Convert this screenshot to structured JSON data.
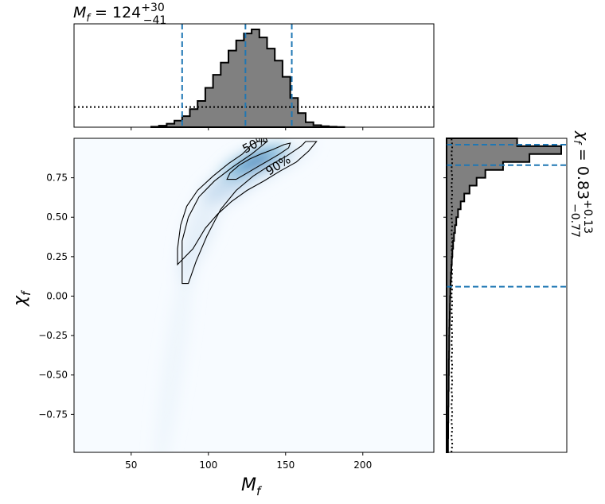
{
  "chart_data": {
    "type": "heatmap",
    "top_title": {
      "base": "M",
      "sub": "f",
      "eq": " = 124",
      "sup": "+30",
      "inf": "−41"
    },
    "right_title": {
      "base": "χ",
      "sub": "f",
      "eq": " = 0.83",
      "sup": "+0.13",
      "inf": "−0.77"
    },
    "xlabel": {
      "base": "M",
      "sub": "f"
    },
    "ylabel": {
      "base": "χ",
      "sub": "f"
    },
    "xlim": [
      13,
      246
    ],
    "ylim": [
      -0.99,
      1.0
    ],
    "xticks": [
      50,
      100,
      150,
      200
    ],
    "xtick_labels": [
      "50",
      "100",
      "150",
      "200"
    ],
    "yticks": [
      -0.75,
      -0.5,
      -0.25,
      0.0,
      0.25,
      0.5,
      0.75
    ],
    "ytick_labels": [
      "−0.75",
      "−0.50",
      "−0.25",
      "0.00",
      "0.25",
      "0.50",
      "0.75"
    ],
    "contour_labels": [
      "50%",
      "90%"
    ],
    "colormap": [
      "#f7fbff",
      "#deebf7",
      "#c6dbef",
      "#9ecae1",
      "#6baed6",
      "#3182bd",
      "#08519c"
    ],
    "hist_fill": "#808080",
    "quantile_color": "#1f77b4",
    "mass_hist": {
      "bin_edges": [
        63,
        68,
        73,
        78,
        83,
        88,
        93,
        98,
        103,
        108,
        113,
        118,
        123,
        128,
        133,
        138,
        143,
        148,
        153,
        158,
        163,
        168,
        173,
        178,
        183,
        188
      ],
      "density": [
        0.5,
        1.5,
        3.5,
        6.5,
        11,
        18,
        26,
        39,
        52,
        64,
        76,
        86,
        93,
        97,
        89,
        78,
        66,
        50,
        29,
        14,
        5,
        2,
        1,
        0.5,
        0.2
      ],
      "prior_level": 20,
      "quantiles": [
        83,
        124,
        154
      ]
    },
    "spin_hist": {
      "bin_edges": [
        -0.99,
        -0.95,
        -0.9,
        -0.85,
        -0.8,
        -0.75,
        -0.7,
        -0.65,
        -0.6,
        -0.55,
        -0.5,
        -0.45,
        -0.4,
        -0.35,
        -0.3,
        -0.25,
        -0.2,
        -0.15,
        -0.1,
        -0.05,
        0.0,
        0.05,
        0.1,
        0.15,
        0.2,
        0.25,
        0.3,
        0.35,
        0.4,
        0.45,
        0.5,
        0.55,
        0.6,
        0.65,
        0.7,
        0.75,
        0.8,
        0.85,
        0.9,
        0.95,
        1.0
      ],
      "density": [
        0.8,
        0.8,
        0.9,
        0.9,
        1.0,
        1.0,
        1.1,
        1.1,
        1.2,
        1.2,
        1.3,
        1.3,
        1.4,
        1.5,
        1.5,
        1.6,
        1.7,
        1.8,
        1.9,
        2.0,
        2.1,
        2.3,
        2.5,
        2.7,
        3.0,
        3.3,
        3.7,
        4.2,
        4.8,
        5.5,
        6.5,
        8,
        10,
        13,
        17,
        22,
        32,
        47,
        65,
        40
      ],
      "prior_level": 3.0,
      "quantiles": [
        0.06,
        0.83,
        0.96
      ]
    },
    "density_peak": {
      "x": 130,
      "y": 0.85
    },
    "contour_50": [
      [
        112,
        0.74
      ],
      [
        114,
        0.78
      ],
      [
        120,
        0.83
      ],
      [
        127,
        0.87
      ],
      [
        134,
        0.9
      ],
      [
        142,
        0.93
      ],
      [
        149,
        0.96
      ],
      [
        153,
        0.97
      ],
      [
        152,
        0.94
      ],
      [
        146,
        0.9
      ],
      [
        139,
        0.86
      ],
      [
        132,
        0.82
      ],
      [
        125,
        0.78
      ],
      [
        118,
        0.74
      ],
      [
        112,
        0.74
      ]
    ],
    "contour_90": [
      [
        83,
        0.08
      ],
      [
        87,
        0.08
      ],
      [
        92,
        0.22
      ],
      [
        99,
        0.38
      ],
      [
        108,
        0.55
      ],
      [
        118,
        0.67
      ],
      [
        129,
        0.76
      ],
      [
        140,
        0.83
      ],
      [
        151,
        0.89
      ],
      [
        160,
        0.95
      ],
      [
        163,
        0.98
      ],
      [
        170,
        0.98
      ],
      [
        165,
        0.92
      ],
      [
        157,
        0.85
      ],
      [
        146,
        0.79
      ],
      [
        136,
        0.73
      ],
      [
        125,
        0.67
      ],
      [
        115,
        0.6
      ],
      [
        106,
        0.52
      ],
      [
        98,
        0.43
      ],
      [
        90,
        0.3
      ],
      [
        80,
        0.2
      ],
      [
        80,
        0.3
      ],
      [
        82,
        0.45
      ],
      [
        86,
        0.57
      ],
      [
        93,
        0.67
      ],
      [
        103,
        0.76
      ],
      [
        113,
        0.84
      ],
      [
        122,
        0.9
      ],
      [
        128,
        0.96
      ],
      [
        132,
        0.98
      ],
      [
        138,
        0.98
      ],
      [
        128,
        0.9
      ],
      [
        116,
        0.82
      ],
      [
        104,
        0.73
      ],
      [
        94,
        0.63
      ],
      [
        87,
        0.5
      ],
      [
        83,
        0.35
      ],
      [
        83,
        0.08
      ]
    ]
  }
}
